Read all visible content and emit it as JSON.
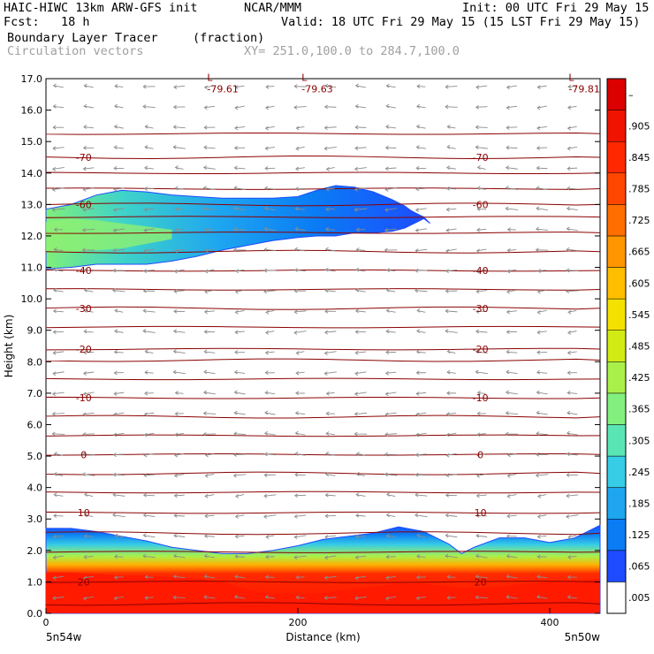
{
  "header": {
    "model": "HAIC-HIWC 13km ARW-GFS init",
    "org": "NCAR/MMM",
    "init": "Init: 00 UTC Fri 29 May 15",
    "fcst": "Fcst:   18 h",
    "valid": "Valid: 18 UTC Fri 29 May 15 (15 LST Fri 29 May 15)",
    "field": "Boundary Layer Tracer",
    "units": "(fraction)",
    "vectors": "Circulation vectors",
    "xy": "XY= 251.0,100.0 to 284.7,100.0"
  },
  "colors": {
    "background": "#ffffff",
    "isotherm": "#8b0000",
    "vector": "#8c8c8c"
  },
  "chart_data": {
    "type": "heatmap",
    "xlabel": "Distance (km)",
    "ylabel": "Height (km)",
    "xlim": [
      0,
      440
    ],
    "ylim": [
      0,
      17
    ],
    "x_ticks": [
      {
        "value": 0,
        "label": "0"
      },
      {
        "value": 200,
        "label": "200"
      },
      {
        "value": 400,
        "label": "400"
      }
    ],
    "y_ticks": [
      "0.0",
      "1.0",
      "2.0",
      "3.0",
      "4.0",
      "5.0",
      "6.0",
      "7.0",
      "8.0",
      "9.0",
      "10.0",
      "11.0",
      "12.0",
      "13.0",
      "14.0",
      "15.0",
      "16.0",
      "17.0"
    ],
    "endpoint_labels": {
      "left": "5n54w",
      "right": "5n50w"
    },
    "colorbar": {
      "levels": [
        ".005",
        ".065",
        ".125",
        ".185",
        ".245",
        ".305",
        ".365",
        ".425",
        ".485",
        ".545",
        ".605",
        ".665",
        ".725",
        ".785",
        ".845",
        ".905",
        "–"
      ],
      "colors": [
        "#ffffff",
        "#1e4bff",
        "#0a7cf4",
        "#1ea6f0",
        "#37cde6",
        "#5ae6b4",
        "#82f07d",
        "#aaf04b",
        "#d2eb14",
        "#f5e100",
        "#ffbe00",
        "#ff9600",
        "#ff6e00",
        "#ff4600",
        "#ff2800",
        "#f01400",
        "#dc0000"
      ]
    },
    "upper_layer": {
      "name": "tracer-upper-layer",
      "x": [
        0,
        20,
        40,
        60,
        80,
        100,
        120,
        140,
        160,
        180,
        200,
        215,
        230,
        245,
        260,
        275,
        285,
        290,
        295,
        300,
        305
      ],
      "top": [
        12.85,
        13.0,
        13.3,
        13.45,
        13.4,
        13.3,
        13.25,
        13.2,
        13.2,
        13.2,
        13.25,
        13.45,
        13.6,
        13.55,
        13.4,
        13.15,
        12.95,
        12.8,
        12.7,
        12.6,
        12.4
      ],
      "bottom": [
        10.95,
        11.0,
        11.1,
        11.1,
        11.1,
        11.2,
        11.35,
        11.55,
        11.7,
        11.85,
        11.95,
        12.0,
        12.0,
        12.1,
        12.1,
        12.15,
        12.25,
        12.35,
        12.45,
        12.55,
        12.4
      ]
    },
    "lower_layer": {
      "name": "tracer-boundary-layer",
      "x": [
        0,
        20,
        40,
        60,
        80,
        100,
        120,
        140,
        160,
        180,
        200,
        220,
        240,
        260,
        280,
        300,
        320,
        330,
        340,
        360,
        380,
        400,
        420,
        440
      ],
      "top": [
        2.7,
        2.7,
        2.6,
        2.45,
        2.3,
        2.1,
        2.0,
        1.9,
        1.9,
        2.0,
        2.15,
        2.35,
        2.45,
        2.55,
        2.75,
        2.6,
        2.2,
        1.9,
        2.1,
        2.4,
        2.4,
        2.25,
        2.4,
        2.8
      ],
      "red_top": [
        1.3,
        1.3,
        1.25,
        1.2,
        1.2,
        1.15,
        1.1,
        1.0,
        0.75,
        0.6,
        0.6,
        0.65,
        0.75,
        0.85,
        0.95,
        0.95,
        0.85,
        0.8,
        0.8,
        0.85,
        0.95,
        1.0,
        1.0,
        1.1
      ]
    },
    "isotherms": [
      {
        "label": "20",
        "y": 1.0
      },
      {
        "label": "10",
        "y": 3.2
      },
      {
        "label": "0",
        "y": 5.05
      },
      {
        "label": "-10",
        "y": 6.85
      },
      {
        "label": "-20",
        "y": 8.4
      },
      {
        "label": "-30",
        "y": 9.7
      },
      {
        "label": "-40",
        "y": 10.9
      },
      {
        "label": "-60",
        "y": 13.0
      },
      {
        "label": "-70",
        "y": 14.5
      }
    ],
    "isotherm_levels": [
      0.3,
      1.0,
      1.95,
      2.55,
      3.2,
      3.85,
      4.45,
      5.05,
      5.65,
      6.25,
      6.85,
      7.45,
      8.05,
      8.4,
      9.1,
      9.7,
      10.3,
      10.9,
      11.5,
      12.1,
      12.6,
      13.0,
      13.5,
      14.0,
      14.5,
      15.25
    ],
    "minima": [
      {
        "label": "L",
        "value": "-79.61",
        "x": 128,
        "y": 16.85
      },
      {
        "label": "L",
        "value": "-79.63",
        "x": 203,
        "y": 16.85
      },
      {
        "label": "L",
        "value": "-79.81",
        "x": 415,
        "y": 16.85
      }
    ]
  }
}
